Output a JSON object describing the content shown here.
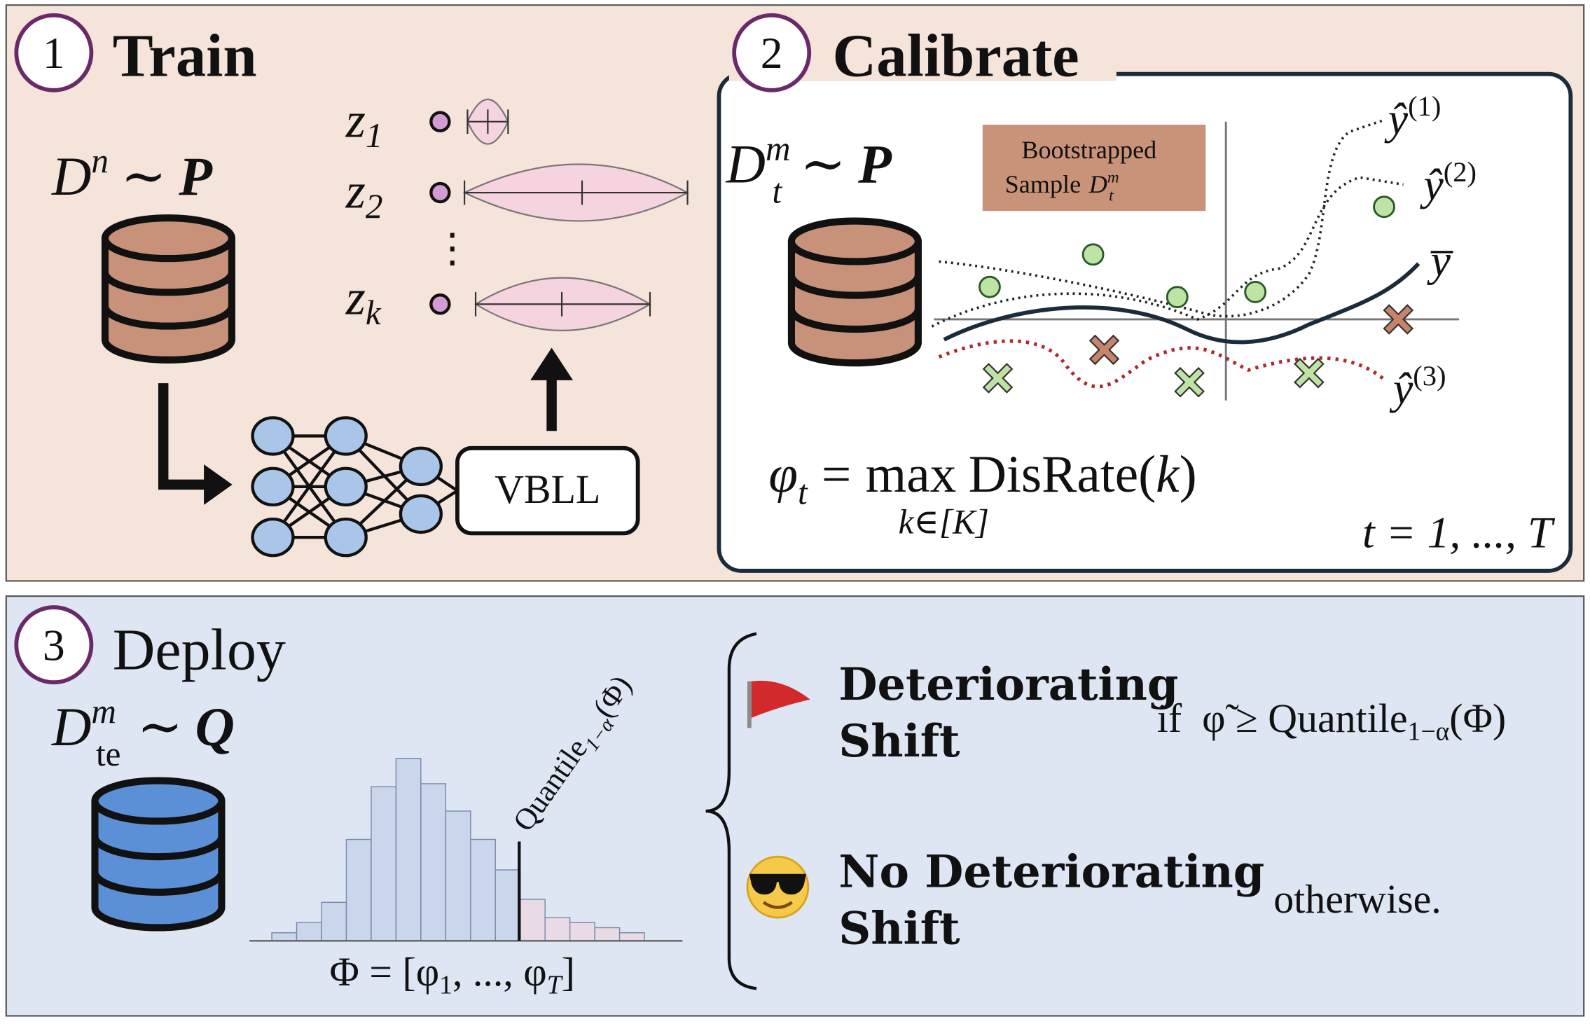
{
  "train": {
    "number": "1",
    "title": "Train",
    "dataset": {
      "symbol": "D",
      "sup": "n",
      "relation": "∼",
      "dist": "P"
    },
    "latents": [
      {
        "name": "z",
        "sub": "1"
      },
      {
        "name": "z",
        "sub": "2"
      },
      {
        "name": "⋮"
      },
      {
        "name": "z",
        "sub": "k"
      }
    ],
    "head": "VBLL"
  },
  "calibrate": {
    "number": "2",
    "title": "Calibrate",
    "dataset": {
      "symbol": "D",
      "sub": "t",
      "sup": "m",
      "relation": "∼",
      "dist": "P"
    },
    "sample_box": {
      "line1": "Bootstrapped",
      "line2": "Sample",
      "symbol": "D",
      "sub": "t",
      "sup": "m"
    },
    "curves": [
      {
        "base": "ŷ",
        "sup": "(1)"
      },
      {
        "base": "ŷ",
        "sup": "(2)"
      },
      {
        "base": "y̅"
      },
      {
        "base": "ŷ",
        "sup": "(3)"
      }
    ],
    "formula": {
      "lhs": "φ",
      "lhs_sub": "t",
      "eq": "=",
      "op": "max",
      "op_sub": "k∈[K]",
      "rhs": "DisRate(",
      "arg": "k",
      "close": ")"
    },
    "range": "t = 1, ..., T"
  },
  "deploy": {
    "number": "3",
    "title": "Deploy",
    "dataset": {
      "symbol": "D",
      "sub": "te",
      "sup": "m",
      "relation": "∼",
      "dist": "Q"
    },
    "quantile": {
      "text": "Quantile",
      "sub": "1−α",
      "tail": "(Φ)"
    },
    "phi_set": {
      "lhs": "Φ = [φ",
      "sub1": "1",
      "mid": ", ..., φ",
      "subT": "T",
      "close": "]"
    },
    "outcomes": [
      {
        "line1": "Deteriorating",
        "line2": "Shift",
        "condition": {
          "if": "if",
          "phi": "φ̃ ≥ Quantile",
          "sub": "1−α",
          "tail": "(Φ)"
        }
      },
      {
        "line1": "No Deteriorating",
        "line2": "Shift",
        "condition": {
          "text": "otherwise."
        }
      }
    ]
  }
}
